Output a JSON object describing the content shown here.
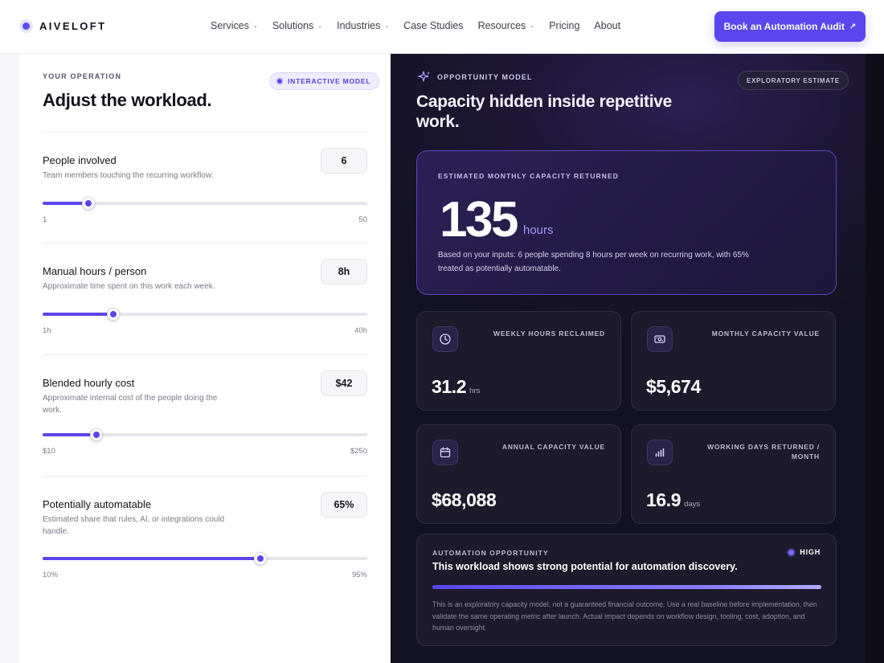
{
  "brand": {
    "name": "AIVELOFT"
  },
  "nav": {
    "links": [
      {
        "label": "Services",
        "dropdown": true
      },
      {
        "label": "Solutions",
        "dropdown": true
      },
      {
        "label": "Industries",
        "dropdown": true
      },
      {
        "label": "Case Studies",
        "dropdown": false
      },
      {
        "label": "Resources",
        "dropdown": true
      },
      {
        "label": "Pricing",
        "dropdown": false
      },
      {
        "label": "About",
        "dropdown": false
      }
    ],
    "cta_label": "Book an Automation Audit",
    "cta_arrow": "↗"
  },
  "left": {
    "eyebrow": "YOUR OPERATION",
    "badge": "INTERACTIVE MODEL",
    "title": "Adjust the workload.",
    "controls": [
      {
        "label": "People involved",
        "help": "Team members touching the recurring workflow.",
        "value": "6",
        "min": "1",
        "max": "50",
        "fraction": 0.14
      },
      {
        "label": "Manual hours / person",
        "help": "Approximate time spent on this work each week.",
        "value": "8h",
        "min": "1h",
        "max": "40h",
        "fraction": 0.217
      },
      {
        "label": "Blended hourly cost",
        "help": "Approximate internal cost of the people doing the work.",
        "value": "$42",
        "min": "$10",
        "max": "$250",
        "fraction": 0.166
      },
      {
        "label": "Potentially automatable",
        "help": "Estimated share that rules, AI, or integrations could handle.",
        "value": "65%",
        "min": "10%",
        "max": "95%",
        "fraction": 0.67
      }
    ]
  },
  "right": {
    "eyebrow": "OPPORTUNITY MODEL",
    "badge": "EXPLORATORY ESTIMATE",
    "title": "Capacity hidden inside repetitive work.",
    "hero": {
      "eyebrow": "ESTIMATED MONTHLY CAPACITY RETURNED",
      "value": "135",
      "unit": "hours",
      "description": "Based on your inputs: 6 people spending 8 hours per week on recurring work, with 65% treated as potentially automatable."
    },
    "stats": [
      {
        "label": "WEEKLY HOURS RECLAIMED",
        "value": "31.2",
        "unit": "hrs",
        "icon": "clock-icon"
      },
      {
        "label": "MONTHLY CAPACITY VALUE",
        "value": "$5,674",
        "unit": "",
        "icon": "banknote-icon"
      },
      {
        "label": "ANNUAL CAPACITY VALUE",
        "value": "$68,088",
        "unit": "",
        "icon": "calendar-icon"
      },
      {
        "label": "WORKING DAYS RETURNED / MONTH",
        "value": "16.9",
        "unit": "days",
        "icon": "bar-chart-icon"
      }
    ],
    "automation": {
      "eyebrow": "AUTOMATION OPPORTUNITY",
      "level": "HIGH",
      "title": "This workload shows strong potential for automation discovery.",
      "fraction": 1.0,
      "description": "This is an exploratory capacity model, not a guaranteed financial outcome. Use a real baseline before implementation, then validate the same operating metric after launch. Actual impact depends on workflow design, tooling, cost, adoption, and human oversight."
    }
  },
  "colors": {
    "accent": "#5b46ee",
    "dark_panel": "#131220",
    "hero_border": "#5848b8"
  }
}
